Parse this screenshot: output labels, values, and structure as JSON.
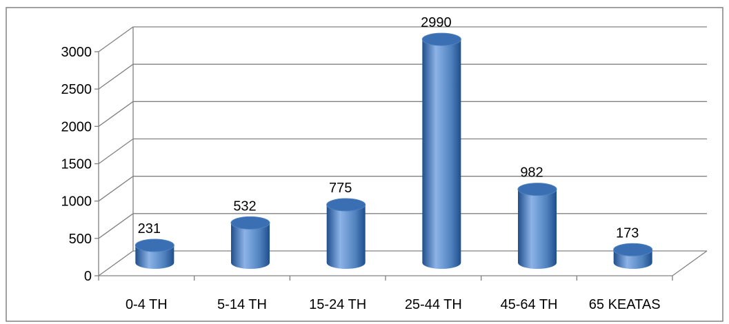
{
  "chart_data": {
    "type": "bar",
    "style": "3d-cylinder",
    "categories": [
      "0-4 TH",
      "5-14 TH",
      "15-24 TH",
      "25-44 TH",
      "45-64 TH",
      "65 KEATAS"
    ],
    "values": [
      231,
      532,
      775,
      2990,
      982,
      173
    ],
    "data_labels": [
      "231",
      "532",
      "775",
      "2990",
      "982",
      "173"
    ],
    "y_ticks": [
      "0",
      "500",
      "1000",
      "1500",
      "2000",
      "2500",
      "3000"
    ],
    "ylim": [
      0,
      3000
    ],
    "grid": true,
    "legend": "none",
    "colors": {
      "bar_light": "#8cb3e8",
      "bar_mid": "#4f81bd",
      "bar_dark": "#1f4e8c",
      "bar_top": "#3a6fb4",
      "grid": "#808080",
      "frame": "#808080"
    }
  }
}
